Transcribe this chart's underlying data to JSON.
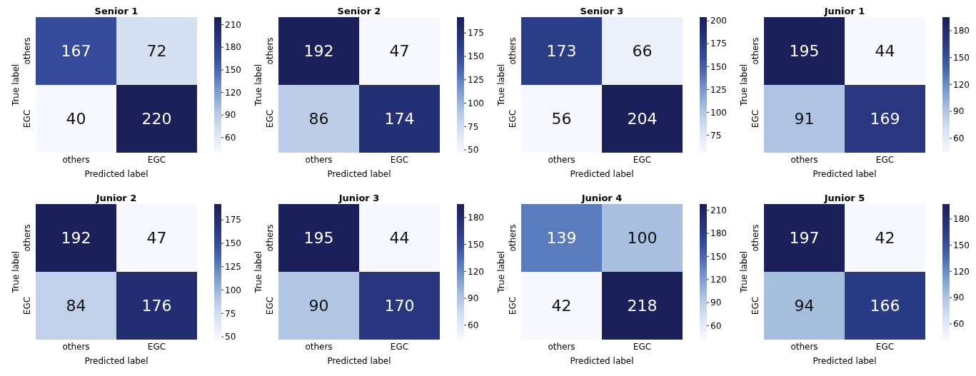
{
  "chart_data": [
    {
      "type": "heatmap",
      "title": "Senior 1",
      "xlabel": "Predicted label",
      "ylabel": "True label",
      "categories": [
        "others",
        "EGC"
      ],
      "y_categories": [
        "others",
        "EGC"
      ],
      "cells": [
        [
          167,
          72
        ],
        [
          40,
          220
        ]
      ],
      "clim": [
        40,
        220
      ],
      "cticks": [
        60,
        90,
        120,
        150,
        180,
        210
      ],
      "data_labels": true
    },
    {
      "type": "heatmap",
      "title": "Senior 2",
      "xlabel": "Predicted label",
      "ylabel": "True label",
      "categories": [
        "others",
        "EGC"
      ],
      "y_categories": [
        "others",
        "EGC"
      ],
      "cells": [
        [
          192,
          47
        ],
        [
          86,
          174
        ]
      ],
      "clim": [
        47,
        192
      ],
      "cticks": [
        50,
        75,
        100,
        125,
        150,
        175
      ],
      "data_labels": true
    },
    {
      "type": "heatmap",
      "title": "Senior 3",
      "xlabel": "Predicted label",
      "ylabel": "True label",
      "categories": [
        "others",
        "EGC"
      ],
      "y_categories": [
        "others",
        "EGC"
      ],
      "cells": [
        [
          173,
          66
        ],
        [
          56,
          204
        ]
      ],
      "clim": [
        56,
        204
      ],
      "cticks": [
        75,
        100,
        125,
        150,
        175,
        200
      ],
      "data_labels": true
    },
    {
      "type": "heatmap",
      "title": "Junior 1",
      "xlabel": "Predicted label",
      "ylabel": "True label",
      "categories": [
        "others",
        "EGC"
      ],
      "y_categories": [
        "others",
        "EGC"
      ],
      "cells": [
        [
          195,
          44
        ],
        [
          91,
          169
        ]
      ],
      "clim": [
        44,
        195
      ],
      "cticks": [
        60,
        90,
        120,
        150,
        180
      ],
      "data_labels": true
    },
    {
      "type": "heatmap",
      "title": "Junior 2",
      "xlabel": "Predicted label",
      "ylabel": "True label",
      "categories": [
        "others",
        "EGC"
      ],
      "y_categories": [
        "others",
        "EGC"
      ],
      "cells": [
        [
          192,
          47
        ],
        [
          84,
          176
        ]
      ],
      "clim": [
        47,
        192
      ],
      "cticks": [
        50,
        75,
        100,
        125,
        150,
        175
      ],
      "data_labels": true
    },
    {
      "type": "heatmap",
      "title": "Junior 3",
      "xlabel": "Predicted label",
      "ylabel": "True label",
      "categories": [
        "others",
        "EGC"
      ],
      "y_categories": [
        "others",
        "EGC"
      ],
      "cells": [
        [
          195,
          44
        ],
        [
          90,
          170
        ]
      ],
      "clim": [
        44,
        195
      ],
      "cticks": [
        60,
        90,
        120,
        150,
        180
      ],
      "data_labels": true
    },
    {
      "type": "heatmap",
      "title": "Junior 4",
      "xlabel": "Predicted label",
      "ylabel": "True label",
      "categories": [
        "others",
        "EGC"
      ],
      "y_categories": [
        "others",
        "EGC"
      ],
      "cells": [
        [
          139,
          100
        ],
        [
          42,
          218
        ]
      ],
      "clim": [
        42,
        218
      ],
      "cticks": [
        60,
        90,
        120,
        150,
        180,
        210
      ],
      "data_labels": true
    },
    {
      "type": "heatmap",
      "title": "Junior 5",
      "xlabel": "Predicted label",
      "ylabel": "True label",
      "categories": [
        "others",
        "EGC"
      ],
      "y_categories": [
        "others",
        "EGC"
      ],
      "cells": [
        [
          197,
          42
        ],
        [
          94,
          166
        ]
      ],
      "clim": [
        42,
        197
      ],
      "cticks": [
        60,
        90,
        120,
        150,
        180
      ],
      "data_labels": true
    }
  ]
}
